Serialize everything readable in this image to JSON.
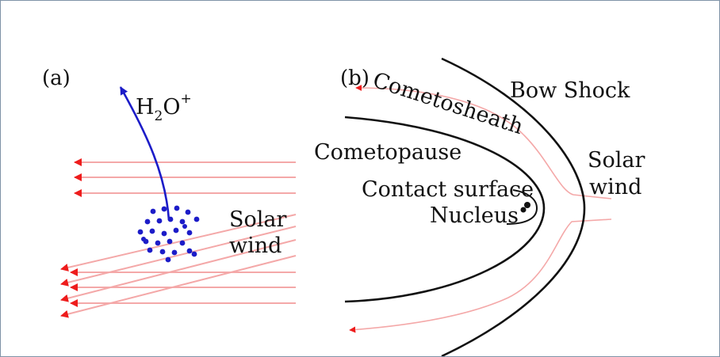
{
  "panel_a": {
    "label": "(a)",
    "ion_label": {
      "base": "H",
      "subscript": "2",
      "tail": "O",
      "superscript": "+"
    },
    "solar_wind": [
      "Solar",
      "wind"
    ]
  },
  "panel_b": {
    "label": "(b)",
    "cometosheath": "Cometosheath",
    "bow_shock": "Bow Shock",
    "cometopause": "Cometopause",
    "contact_surface": "Contact surface",
    "nucleus": "Nucleus",
    "solar_wind": [
      "Solar",
      "wind"
    ]
  },
  "colors": {
    "flow_line": "#f4a8a8",
    "arrow_head": "#ee1c1c",
    "ion": "#1c1cc8",
    "boundary": "#111111"
  }
}
